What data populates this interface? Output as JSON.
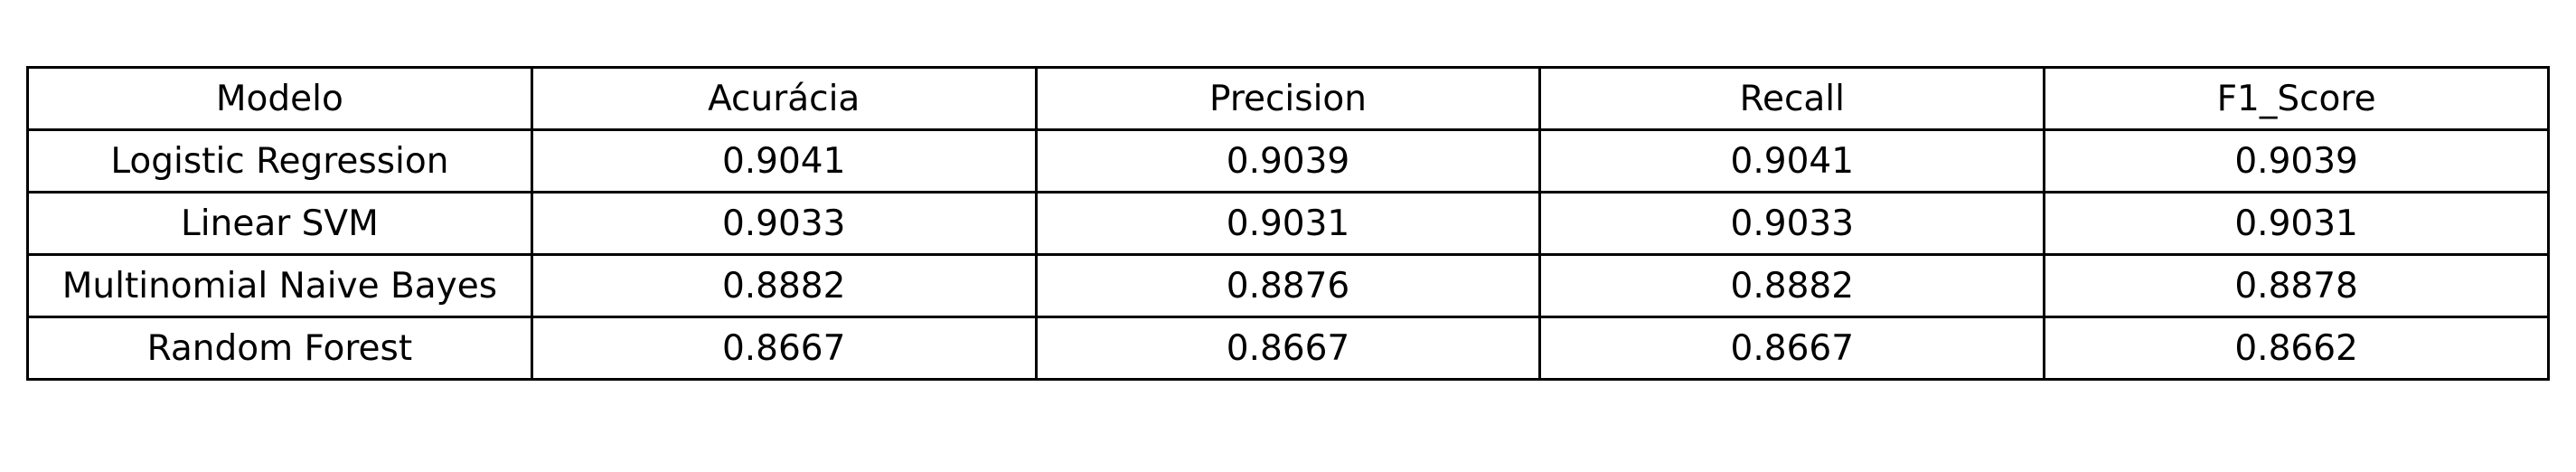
{
  "chart_data": {
    "type": "table",
    "columns": [
      "Modelo",
      "Acurácia",
      "Precision",
      "Recall",
      "F1_Score"
    ],
    "rows": [
      [
        "Logistic Regression",
        "0.9041",
        "0.9039",
        "0.9041",
        "0.9039"
      ],
      [
        "Linear SVM",
        "0.9033",
        "0.9031",
        "0.9033",
        "0.9031"
      ],
      [
        "Multinomial Naive Bayes",
        "0.8882",
        "0.8876",
        "0.8882",
        "0.8878"
      ],
      [
        "Random Forest",
        "0.8667",
        "0.8667",
        "0.8667",
        "0.8662"
      ]
    ]
  }
}
